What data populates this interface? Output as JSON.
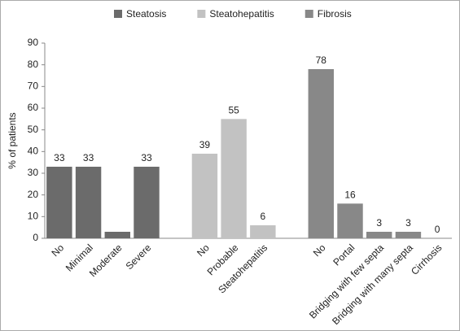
{
  "chart_data": {
    "type": "bar",
    "y_label": "% of patients",
    "categories": [
      "No",
      "Minimal",
      "Moderate",
      "Severe",
      null,
      "No",
      "Probable",
      "Steatohepatitis",
      null,
      "No",
      "Portal",
      "Bridging with few septa",
      "Bridging with many septa",
      "Cirrhosis"
    ],
    "series": [
      {
        "name": "Steatosis",
        "color": "#6b6b6b",
        "values": [
          33,
          33,
          3,
          33,
          null,
          null,
          null,
          null,
          null,
          null,
          null,
          null,
          null,
          null
        ],
        "value_labels": [
          "33",
          "33",
          null,
          "33",
          null,
          null,
          null,
          null,
          null,
          null,
          null,
          null,
          null,
          null
        ]
      },
      {
        "name": "Steatohepatitis",
        "color": "#c2c2c2",
        "values": [
          null,
          null,
          null,
          null,
          null,
          39,
          55,
          6,
          null,
          null,
          null,
          null,
          null,
          null
        ],
        "value_labels": [
          null,
          null,
          null,
          null,
          null,
          "39",
          "55",
          "6",
          null,
          null,
          null,
          null,
          null,
          null
        ]
      },
      {
        "name": "Fibrosis",
        "color": "#888888",
        "values": [
          null,
          null,
          null,
          null,
          null,
          null,
          null,
          null,
          null,
          78,
          16,
          3,
          3,
          0
        ],
        "value_labels": [
          null,
          null,
          null,
          null,
          null,
          null,
          null,
          null,
          null,
          "78",
          "16",
          "3",
          "3",
          "0"
        ]
      }
    ],
    "ylim": [
      0,
      90
    ],
    "yticks": [
      0,
      10,
      20,
      30,
      40,
      50,
      60,
      70,
      80,
      90
    ],
    "legend": "top"
  }
}
